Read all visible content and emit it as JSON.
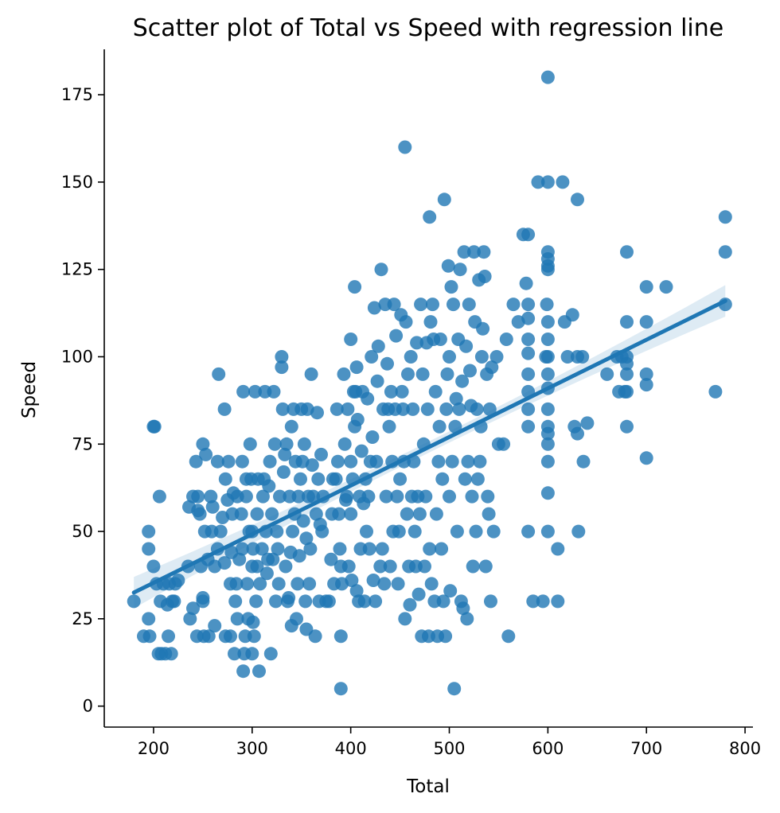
{
  "chart_data": {
    "type": "scatter",
    "title": "Scatter plot of Total vs Speed with regression line",
    "xlabel": "Total",
    "ylabel": "Speed",
    "xlim": [
      150,
      808
    ],
    "ylim": [
      -6,
      188
    ],
    "xticks": [
      200,
      300,
      400,
      500,
      600,
      700,
      800
    ],
    "yticks": [
      0,
      25,
      50,
      75,
      100,
      125,
      150,
      175
    ],
    "grid": false,
    "color": "#1f77b4",
    "regression": {
      "x_start": 180,
      "y_start": 32.5,
      "x_end": 780,
      "y_end": 116,
      "ci_halfwidth_ends": 4.5,
      "ci_halfwidth_mid": 1.6
    },
    "points": [
      [
        180,
        30
      ],
      [
        190,
        20
      ],
      [
        195,
        25
      ],
      [
        195,
        50
      ],
      [
        195,
        45
      ],
      [
        196,
        20
      ],
      [
        200,
        40
      ],
      [
        200,
        80
      ],
      [
        201,
        80
      ],
      [
        203,
        35
      ],
      [
        205,
        15
      ],
      [
        206,
        60
      ],
      [
        207,
        30
      ],
      [
        208,
        15
      ],
      [
        210,
        35
      ],
      [
        212,
        15
      ],
      [
        214,
        29
      ],
      [
        215,
        20
      ],
      [
        216,
        35
      ],
      [
        218,
        15
      ],
      [
        219,
        30
      ],
      [
        221,
        30
      ],
      [
        222,
        35
      ],
      [
        225,
        36
      ],
      [
        235,
        40
      ],
      [
        236,
        57
      ],
      [
        237,
        25
      ],
      [
        240,
        28
      ],
      [
        240,
        60
      ],
      [
        243,
        70
      ],
      [
        244,
        20
      ],
      [
        245,
        56
      ],
      [
        245,
        60
      ],
      [
        247,
        55
      ],
      [
        248,
        40
      ],
      [
        250,
        75
      ],
      [
        250,
        31
      ],
      [
        250,
        30
      ],
      [
        251,
        20
      ],
      [
        252,
        50
      ],
      [
        253,
        72
      ],
      [
        255,
        42
      ],
      [
        256,
        20
      ],
      [
        258,
        60
      ],
      [
        259,
        50
      ],
      [
        260,
        57
      ],
      [
        262,
        40
      ],
      [
        262,
        23
      ],
      [
        265,
        70
      ],
      [
        265,
        45
      ],
      [
        266,
        95
      ],
      [
        268,
        50
      ],
      [
        270,
        54
      ],
      [
        272,
        41
      ],
      [
        272,
        85
      ],
      [
        273,
        20
      ],
      [
        273,
        65
      ],
      [
        275,
        59
      ],
      [
        276,
        70
      ],
      [
        278,
        35
      ],
      [
        278,
        20
      ],
      [
        279,
        44
      ],
      [
        280,
        55
      ],
      [
        281,
        61
      ],
      [
        282,
        15
      ],
      [
        283,
        30
      ],
      [
        284,
        35
      ],
      [
        285,
        60
      ],
      [
        285,
        25
      ],
      [
        287,
        42
      ],
      [
        289,
        55
      ],
      [
        290,
        45
      ],
      [
        290,
        70
      ],
      [
        291,
        10
      ],
      [
        291,
        90
      ],
      [
        292,
        15
      ],
      [
        293,
        20
      ],
      [
        294,
        60
      ],
      [
        294,
        65
      ],
      [
        295,
        35
      ],
      [
        296,
        25
      ],
      [
        297,
        50
      ],
      [
        298,
        75
      ],
      [
        299,
        65
      ],
      [
        300,
        50
      ],
      [
        300,
        40
      ],
      [
        300,
        15
      ],
      [
        301,
        24
      ],
      [
        301,
        45
      ],
      [
        302,
        20
      ],
      [
        303,
        90
      ],
      [
        304,
        30
      ],
      [
        305,
        40
      ],
      [
        305,
        55
      ],
      [
        306,
        65
      ],
      [
        307,
        10
      ],
      [
        308,
        35
      ],
      [
        310,
        45
      ],
      [
        311,
        60
      ],
      [
        312,
        65
      ],
      [
        313,
        90
      ],
      [
        314,
        50
      ],
      [
        315,
        38
      ],
      [
        316,
        42
      ],
      [
        317,
        63
      ],
      [
        318,
        70
      ],
      [
        319,
        15
      ],
      [
        320,
        55
      ],
      [
        321,
        42
      ],
      [
        322,
        90
      ],
      [
        323,
        75
      ],
      [
        324,
        30
      ],
      [
        325,
        50
      ],
      [
        326,
        45
      ],
      [
        327,
        35
      ],
      [
        328,
        60
      ],
      [
        330,
        100
      ],
      [
        330,
        97
      ],
      [
        331,
        85
      ],
      [
        332,
        67
      ],
      [
        333,
        72
      ],
      [
        334,
        40
      ],
      [
        335,
        75
      ],
      [
        336,
        30
      ],
      [
        337,
        31
      ],
      [
        338,
        60
      ],
      [
        339,
        44
      ],
      [
        340,
        23
      ],
      [
        340,
        80
      ],
      [
        341,
        50
      ],
      [
        342,
        85
      ],
      [
        343,
        55
      ],
      [
        344,
        70
      ],
      [
        345,
        25
      ],
      [
        346,
        35
      ],
      [
        347,
        60
      ],
      [
        348,
        43
      ],
      [
        349,
        65
      ],
      [
        350,
        85
      ],
      [
        351,
        70
      ],
      [
        352,
        53
      ],
      [
        353,
        75
      ],
      [
        354,
        30
      ],
      [
        355,
        22
      ],
      [
        355,
        48
      ],
      [
        356,
        85
      ],
      [
        357,
        60
      ],
      [
        358,
        35
      ],
      [
        359,
        45
      ],
      [
        360,
        95
      ],
      [
        361,
        69
      ],
      [
        362,
        60
      ],
      [
        364,
        20
      ],
      [
        365,
        55
      ],
      [
        366,
        84
      ],
      [
        367,
        65
      ],
      [
        368,
        30
      ],
      [
        369,
        52
      ],
      [
        370,
        72
      ],
      [
        371,
        50
      ],
      [
        372,
        60
      ],
      [
        375,
        30
      ],
      [
        378,
        30
      ],
      [
        380,
        42
      ],
      [
        381,
        55
      ],
      [
        382,
        65
      ],
      [
        383,
        35
      ],
      [
        385,
        65
      ],
      [
        386,
        85
      ],
      [
        387,
        70
      ],
      [
        388,
        55
      ],
      [
        389,
        45
      ],
      [
        390,
        5
      ],
      [
        390,
        40
      ],
      [
        390,
        20
      ],
      [
        391,
        35
      ],
      [
        393,
        95
      ],
      [
        394,
        75
      ],
      [
        395,
        59
      ],
      [
        396,
        60
      ],
      [
        397,
        85
      ],
      [
        398,
        40
      ],
      [
        400,
        55
      ],
      [
        400,
        70
      ],
      [
        400,
        105
      ],
      [
        401,
        36
      ],
      [
        402,
        65
      ],
      [
        403,
        90
      ],
      [
        404,
        80
      ],
      [
        404,
        120
      ],
      [
        405,
        90
      ],
      [
        406,
        97
      ],
      [
        406,
        33
      ],
      [
        407,
        82
      ],
      [
        408,
        30
      ],
      [
        409,
        60
      ],
      [
        410,
        45
      ],
      [
        411,
        73
      ],
      [
        412,
        90
      ],
      [
        413,
        58
      ],
      [
        414,
        30
      ],
      [
        415,
        65
      ],
      [
        416,
        50
      ],
      [
        417,
        88
      ],
      [
        418,
        60
      ],
      [
        419,
        45
      ],
      [
        420,
        70
      ],
      [
        421,
        100
      ],
      [
        422,
        77
      ],
      [
        423,
        36
      ],
      [
        424,
        114
      ],
      [
        425,
        30
      ],
      [
        426,
        70
      ],
      [
        427,
        93
      ],
      [
        428,
        103
      ],
      [
        430,
        40
      ],
      [
        431,
        125
      ],
      [
        432,
        45
      ],
      [
        433,
        85
      ],
      [
        434,
        35
      ],
      [
        435,
        115
      ],
      [
        436,
        60
      ],
      [
        437,
        98
      ],
      [
        438,
        85
      ],
      [
        439,
        80
      ],
      [
        440,
        40
      ],
      [
        441,
        90
      ],
      [
        442,
        70
      ],
      [
        443,
        50
      ],
      [
        444,
        115
      ],
      [
        445,
        85
      ],
      [
        446,
        106
      ],
      [
        447,
        60
      ],
      [
        448,
        35
      ],
      [
        449,
        50
      ],
      [
        450,
        65
      ],
      [
        451,
        112
      ],
      [
        452,
        90
      ],
      [
        453,
        85
      ],
      [
        454,
        70
      ],
      [
        455,
        160
      ],
      [
        455,
        25
      ],
      [
        456,
        110
      ],
      [
        457,
        55
      ],
      [
        458,
        95
      ],
      [
        459,
        40
      ],
      [
        460,
        29
      ],
      [
        461,
        100
      ],
      [
        462,
        60
      ],
      [
        463,
        85
      ],
      [
        464,
        70
      ],
      [
        465,
        50
      ],
      [
        466,
        40
      ],
      [
        467,
        104
      ],
      [
        468,
        60
      ],
      [
        469,
        32
      ],
      [
        470,
        55
      ],
      [
        471,
        115
      ],
      [
        472,
        20
      ],
      [
        473,
        95
      ],
      [
        474,
        75
      ],
      [
        475,
        40
      ],
      [
        476,
        60
      ],
      [
        477,
        104
      ],
      [
        478,
        85
      ],
      [
        479,
        20
      ],
      [
        480,
        45
      ],
      [
        480,
        140
      ],
      [
        481,
        110
      ],
      [
        482,
        35
      ],
      [
        483,
        115
      ],
      [
        484,
        105
      ],
      [
        485,
        30
      ],
      [
        486,
        90
      ],
      [
        487,
        55
      ],
      [
        488,
        20
      ],
      [
        489,
        70
      ],
      [
        490,
        80
      ],
      [
        491,
        105
      ],
      [
        492,
        45
      ],
      [
        493,
        65
      ],
      [
        494,
        30
      ],
      [
        495,
        145
      ],
      [
        496,
        20
      ],
      [
        497,
        85
      ],
      [
        498,
        95
      ],
      [
        499,
        126
      ],
      [
        500,
        100
      ],
      [
        500,
        60
      ],
      [
        501,
        33
      ],
      [
        502,
        120
      ],
      [
        503,
        70
      ],
      [
        504,
        115
      ],
      [
        505,
        5
      ],
      [
        506,
        80
      ],
      [
        507,
        88
      ],
      [
        508,
        50
      ],
      [
        509,
        105
      ],
      [
        510,
        85
      ],
      [
        511,
        125
      ],
      [
        512,
        30
      ],
      [
        513,
        93
      ],
      [
        514,
        28
      ],
      [
        515,
        130
      ],
      [
        516,
        65
      ],
      [
        517,
        103
      ],
      [
        518,
        25
      ],
      [
        519,
        70
      ],
      [
        520,
        115
      ],
      [
        521,
        96
      ],
      [
        522,
        86
      ],
      [
        523,
        60
      ],
      [
        524,
        40
      ],
      [
        525,
        130
      ],
      [
        526,
        110
      ],
      [
        527,
        50
      ],
      [
        528,
        85
      ],
      [
        529,
        65
      ],
      [
        530,
        122
      ],
      [
        531,
        70
      ],
      [
        532,
        80
      ],
      [
        533,
        100
      ],
      [
        534,
        108
      ],
      [
        535,
        130
      ],
      [
        536,
        123
      ],
      [
        537,
        40
      ],
      [
        538,
        95
      ],
      [
        539,
        60
      ],
      [
        540,
        55
      ],
      [
        541,
        85
      ],
      [
        542,
        30
      ],
      [
        543,
        97
      ],
      [
        545,
        50
      ],
      [
        548,
        100
      ],
      [
        550,
        75
      ],
      [
        555,
        75
      ],
      [
        558,
        105
      ],
      [
        560,
        20
      ],
      [
        565,
        115
      ],
      [
        570,
        110
      ],
      [
        575,
        135
      ],
      [
        578,
        121
      ],
      [
        580,
        135
      ],
      [
        580,
        90
      ],
      [
        580,
        101
      ],
      [
        580,
        50
      ],
      [
        580,
        80
      ],
      [
        580,
        85
      ],
      [
        580,
        95
      ],
      [
        580,
        105
      ],
      [
        580,
        111
      ],
      [
        580,
        115
      ],
      [
        585,
        30
      ],
      [
        590,
        150
      ],
      [
        595,
        30
      ],
      [
        598,
        100
      ],
      [
        599,
        115
      ],
      [
        600,
        180
      ],
      [
        600,
        150
      ],
      [
        600,
        130
      ],
      [
        600,
        128
      ],
      [
        600,
        126
      ],
      [
        600,
        125
      ],
      [
        600,
        110
      ],
      [
        600,
        105
      ],
      [
        600,
        100
      ],
      [
        600,
        95
      ],
      [
        600,
        91
      ],
      [
        600,
        85
      ],
      [
        600,
        80
      ],
      [
        600,
        78
      ],
      [
        600,
        75
      ],
      [
        600,
        70
      ],
      [
        600,
        61
      ],
      [
        600,
        50
      ],
      [
        610,
        45
      ],
      [
        610,
        30
      ],
      [
        615,
        150
      ],
      [
        617,
        110
      ],
      [
        620,
        100
      ],
      [
        625,
        112
      ],
      [
        627,
        80
      ],
      [
        630,
        145
      ],
      [
        630,
        100
      ],
      [
        630,
        78
      ],
      [
        631,
        50
      ],
      [
        635,
        100
      ],
      [
        636,
        70
      ],
      [
        640,
        81
      ],
      [
        660,
        95
      ],
      [
        670,
        100
      ],
      [
        672,
        90
      ],
      [
        675,
        100
      ],
      [
        678,
        90
      ],
      [
        680,
        130
      ],
      [
        680,
        110
      ],
      [
        680,
        100
      ],
      [
        680,
        98
      ],
      [
        680,
        95
      ],
      [
        680,
        90
      ],
      [
        680,
        80
      ],
      [
        700,
        120
      ],
      [
        700,
        110
      ],
      [
        700,
        95
      ],
      [
        700,
        92
      ],
      [
        700,
        71
      ],
      [
        720,
        120
      ],
      [
        770,
        90
      ],
      [
        780,
        140
      ],
      [
        780,
        130
      ],
      [
        780,
        115
      ]
    ]
  }
}
